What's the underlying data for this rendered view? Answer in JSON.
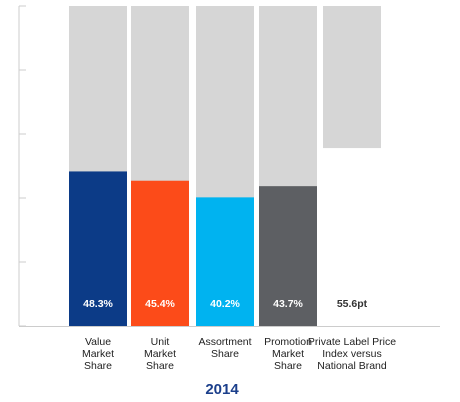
{
  "chart_data": {
    "type": "bar",
    "title": "2014",
    "categories": [
      [
        "Value",
        "Market",
        "Share"
      ],
      [
        "Unit",
        "Market",
        "Share"
      ],
      [
        "Assortment",
        "Share"
      ],
      [
        "Promotion",
        "Market",
        "Share"
      ],
      [
        "Private Label Price",
        "Index versus",
        "National Brand"
      ]
    ],
    "values": [
      48.3,
      45.4,
      40.2,
      43.7,
      55.6
    ],
    "value_labels": [
      "48.3%",
      "45.4%",
      "40.2%",
      "43.7%",
      "55.6pt"
    ],
    "ylim": [
      0,
      100
    ],
    "grid": false,
    "colors": {
      "bars": [
        "#0c3b87",
        "#fc4b19",
        "#00b3f0",
        "#5d5f63",
        "#ffffff"
      ],
      "background_bar": "#d6d6d6",
      "axis": "#cccccc",
      "value_text": [
        "#ffffff",
        "#ffffff",
        "#ffffff",
        "#ffffff",
        "#333333"
      ],
      "year_text": "#1b3f8b"
    }
  }
}
